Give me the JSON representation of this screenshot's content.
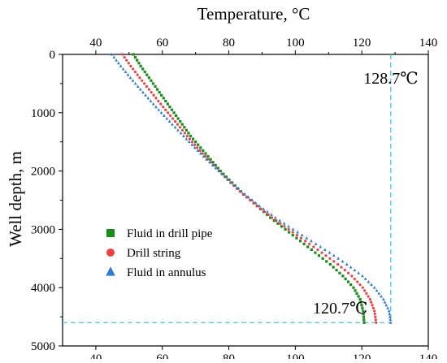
{
  "chart_data": {
    "type": "scatter",
    "title": "",
    "xlabel": "Temperature, °C",
    "ylabel": "Well depth, m",
    "x_axis_position": "top",
    "y_axis_inverted": true,
    "xlim": [
      30,
      140
    ],
    "ylim": [
      0,
      5000
    ],
    "x_ticks": [
      40,
      60,
      80,
      100,
      120,
      140
    ],
    "y_ticks": [
      0,
      1000,
      2000,
      3000,
      4000,
      5000
    ],
    "grid": false,
    "legend_position": "lower-left",
    "series": [
      {
        "name": "Fluid in drill pipe",
        "marker": "square",
        "color": "#1a8c1a",
        "points": [
          [
            51.3,
            0
          ],
          [
            53.5,
            200
          ],
          [
            56.0,
            400
          ],
          [
            58.5,
            600
          ],
          [
            61.0,
            800
          ],
          [
            63.5,
            1000
          ],
          [
            66.0,
            1200
          ],
          [
            68.5,
            1400
          ],
          [
            71.5,
            1600
          ],
          [
            74.5,
            1800
          ],
          [
            77.5,
            2000
          ],
          [
            81.0,
            2200
          ],
          [
            84.5,
            2400
          ],
          [
            88.5,
            2600
          ],
          [
            92.5,
            2800
          ],
          [
            97.0,
            3000
          ],
          [
            101.5,
            3200
          ],
          [
            106.0,
            3400
          ],
          [
            110.5,
            3600
          ],
          [
            114.3,
            3800
          ],
          [
            117.5,
            4000
          ],
          [
            119.5,
            4200
          ],
          [
            120.4,
            4400
          ],
          [
            120.7,
            4600
          ]
        ]
      },
      {
        "name": "Drill string",
        "marker": "circle",
        "color": "#ee4040",
        "points": [
          [
            48.0,
            0
          ],
          [
            50.5,
            200
          ],
          [
            53.2,
            400
          ],
          [
            56.0,
            600
          ],
          [
            58.8,
            800
          ],
          [
            61.7,
            1000
          ],
          [
            64.6,
            1200
          ],
          [
            67.5,
            1400
          ],
          [
            70.5,
            1600
          ],
          [
            73.7,
            1800
          ],
          [
            77.0,
            2000
          ],
          [
            80.5,
            2200
          ],
          [
            84.3,
            2400
          ],
          [
            88.5,
            2600
          ],
          [
            93.0,
            2800
          ],
          [
            98.0,
            3000
          ],
          [
            103.0,
            3200
          ],
          [
            108.0,
            3400
          ],
          [
            112.8,
            3600
          ],
          [
            117.0,
            3800
          ],
          [
            120.3,
            4000
          ],
          [
            122.5,
            4200
          ],
          [
            123.8,
            4400
          ],
          [
            124.3,
            4600
          ]
        ]
      },
      {
        "name": "Fluid in annulus",
        "marker": "triangle",
        "color": "#2e7bd6",
        "points": [
          [
            44.8,
            0
          ],
          [
            47.5,
            200
          ],
          [
            50.4,
            400
          ],
          [
            53.4,
            600
          ],
          [
            56.5,
            800
          ],
          [
            59.7,
            1000
          ],
          [
            63.0,
            1200
          ],
          [
            66.4,
            1400
          ],
          [
            69.8,
            1600
          ],
          [
            73.3,
            1800
          ],
          [
            77.0,
            2000
          ],
          [
            80.8,
            2200
          ],
          [
            84.8,
            2400
          ],
          [
            89.2,
            2600
          ],
          [
            94.0,
            2800
          ],
          [
            99.3,
            3000
          ],
          [
            104.8,
            3200
          ],
          [
            110.3,
            3400
          ],
          [
            115.5,
            3600
          ],
          [
            120.2,
            3800
          ],
          [
            123.8,
            4000
          ],
          [
            126.5,
            4200
          ],
          [
            128.2,
            4400
          ],
          [
            128.7,
            4600
          ]
        ]
      }
    ],
    "reference_lines": [
      {
        "orientation": "vertical",
        "value": 128.7,
        "color": "#3cc8f0"
      },
      {
        "orientation": "horizontal",
        "value": 4600,
        "color": "#3cc8f0"
      }
    ],
    "annotations": [
      {
        "text": "128.7℃",
        "x": 120.5,
        "y": 500
      },
      {
        "text": "120.7℃",
        "x": 105.3,
        "y": 4440
      }
    ]
  }
}
